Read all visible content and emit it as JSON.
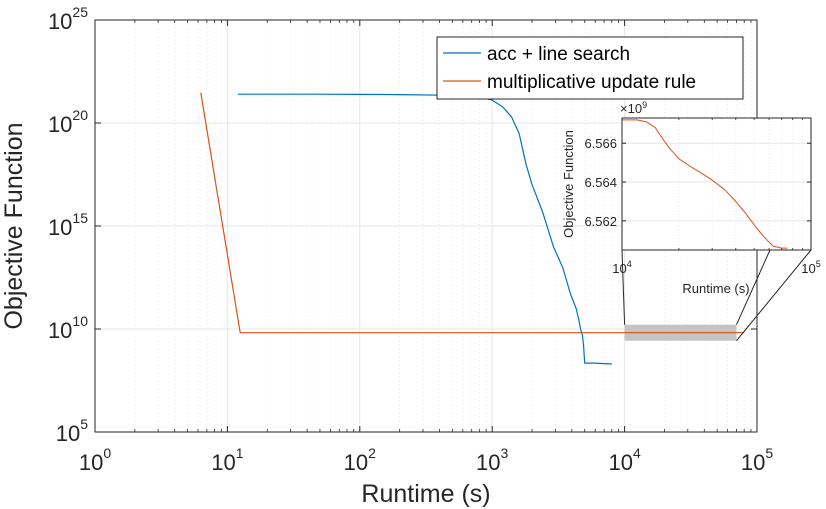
{
  "chart_data": [
    {
      "type": "line",
      "xlabel": "Runtime (s)",
      "ylabel": "Objective Function",
      "x_scale": "log",
      "y_scale": "log",
      "xlim": [
        1,
        100000
      ],
      "ylim": [
        100000,
        1e+25
      ],
      "x_ticks": [
        {
          "base": "10",
          "exp": "0"
        },
        {
          "base": "10",
          "exp": "1"
        },
        {
          "base": "10",
          "exp": "2"
        },
        {
          "base": "10",
          "exp": "3"
        },
        {
          "base": "10",
          "exp": "4"
        },
        {
          "base": "10",
          "exp": "5"
        }
      ],
      "y_ticks": [
        {
          "base": "10",
          "exp": "5"
        },
        {
          "base": "10",
          "exp": "10"
        },
        {
          "base": "10",
          "exp": "15"
        },
        {
          "base": "10",
          "exp": "20"
        },
        {
          "base": "10",
          "exp": "25"
        }
      ],
      "grid": true,
      "legend_position": "top-right",
      "series": [
        {
          "name": "acc + line search",
          "color": "#0072BD",
          "x": [
            12,
            50,
            200,
            500,
            800,
            1000,
            1200,
            1400,
            1600,
            1800,
            2000,
            2400,
            2900,
            3400,
            3900,
            4300,
            4500,
            4650,
            4800,
            4900,
            5000,
            6000,
            8000
          ],
          "y": [
            2.5e+21,
            2.5e+21,
            2.4e+21,
            2.2e+21,
            1.8e+21,
            1.3e+21,
            6e+20,
            2e+20,
            3e+19,
            1e+18,
            1e+17,
            5000000000000000.0,
            100000000000000.0,
            10000000000000.0,
            500000000000.0,
            100000000000.0,
            30000000000.0,
            10000000000.0,
            5000000000.0,
            1500000000.0,
            220000000.0,
            220000000.0,
            200000000.0
          ]
        },
        {
          "name": "multiplicative update rule",
          "color": "#D95319",
          "x": [
            6.3,
            12.5,
            20,
            100,
            1000,
            5000,
            10000,
            80000
          ],
          "y": [
            3e+21,
            6600000000.0,
            6600000000.0,
            6600000000.0,
            6600000000.0,
            6600000000.0,
            6600000000.0,
            6600000000.0
          ]
        }
      ],
      "highlight": {
        "x_range": [
          10000,
          70000
        ]
      }
    },
    {
      "type": "line",
      "xlabel": "Runtime (s)",
      "ylabel": "Objective Function",
      "x_scale": "log",
      "xlim": [
        10000,
        100000
      ],
      "ylim": [
        6.5605,
        6.5673
      ],
      "y_multiplier": {
        "base": "×10",
        "exp": "9"
      },
      "x_ticks": [
        {
          "base": "10",
          "exp": "4"
        },
        {
          "base": "10",
          "exp": "5"
        }
      ],
      "y_ticks": [
        "6.562",
        "6.564",
        "6.566"
      ],
      "grid": true,
      "series": [
        {
          "name": "multiplicative update rule",
          "color": "#D95319",
          "x": [
            10000,
            12000,
            13500,
            15000,
            16500,
            18000,
            20000,
            23000,
            26000,
            30000,
            35000,
            40000,
            45000,
            50000,
            55000,
            60000,
            63000,
            70000,
            75000
          ],
          "y": [
            6.5672,
            6.5672,
            6.5671,
            6.5668,
            6.5662,
            6.5657,
            6.5652,
            6.5648,
            6.5645,
            6.5641,
            6.5636,
            6.563,
            6.5624,
            6.5618,
            6.5613,
            6.5609,
            6.5607,
            6.5606,
            6.5606
          ]
        }
      ]
    }
  ]
}
